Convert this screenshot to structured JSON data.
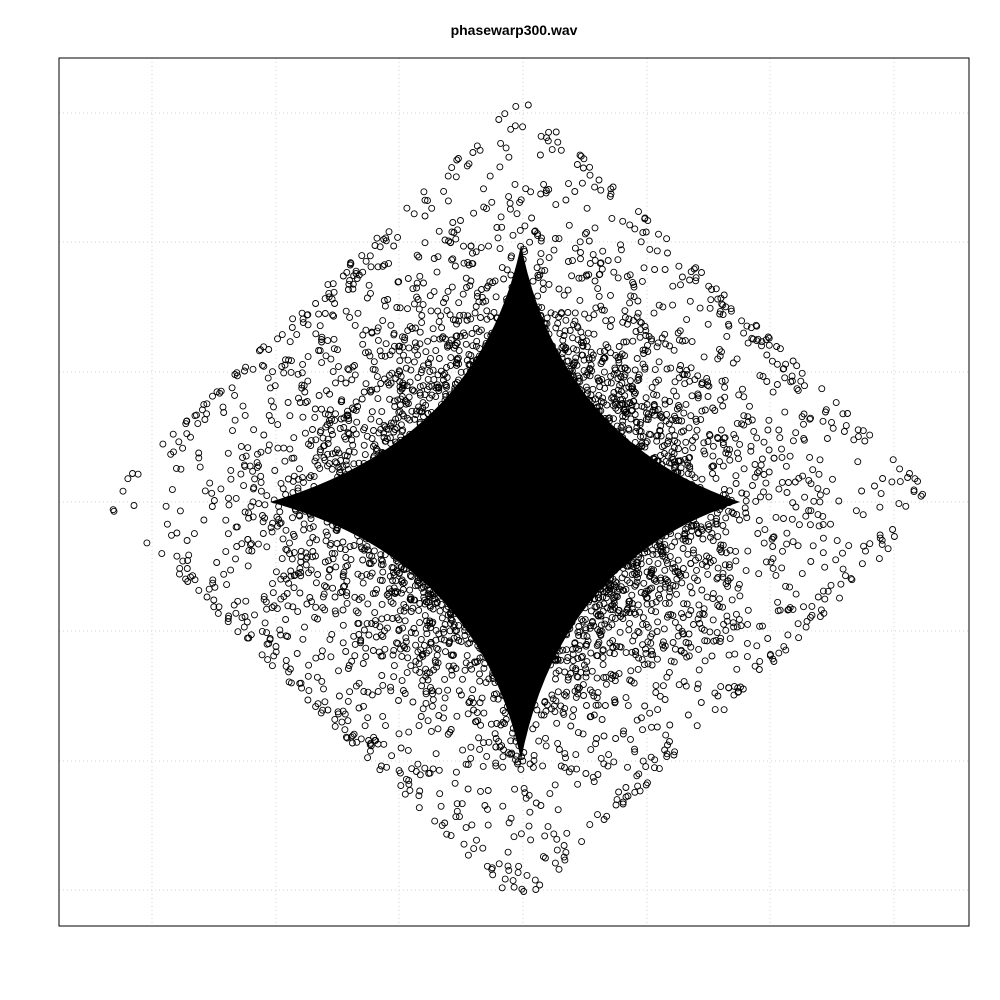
{
  "chart_data": {
    "type": "scatter",
    "title": "phasewarp300.wav",
    "xlabel": "",
    "ylabel": "",
    "xlim": [
      -1,
      1
    ],
    "ylim": [
      -1,
      1
    ],
    "grid": true,
    "grid_style": "dotted",
    "axes_shown": false,
    "marker": "open-circle",
    "marker_color": "#000000",
    "grid_x": [
      -0.8,
      -0.6,
      -0.4,
      -0.2,
      0,
      0.2,
      0.4,
      0.6,
      0.8
    ],
    "grid_y": [
      -0.8,
      -0.6,
      -0.4,
      -0.2,
      0,
      0.2,
      0.4,
      0.6,
      0.8
    ],
    "distribution": "diamond",
    "x_extent": [
      -0.94,
      0.94
    ],
    "y_extent": [
      -0.9,
      0.92
    ],
    "point_count": 14000
  }
}
